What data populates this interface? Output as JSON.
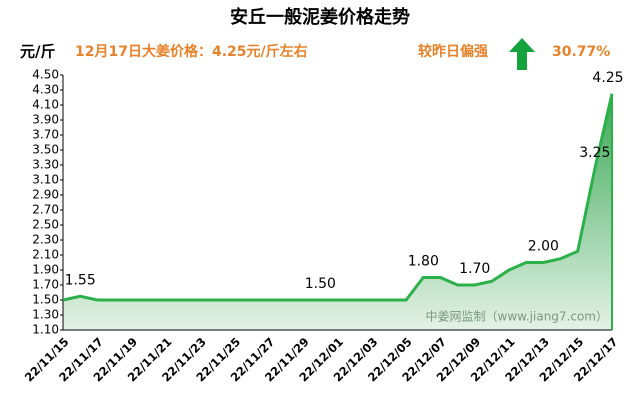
{
  "chart_data": {
    "type": "area",
    "title": "安丘一般泥姜价格走势",
    "y_label": "元/斤",
    "subtitle": "12月17日大姜价格：4.25元/斤左右",
    "compare_text": "较昨日偏强",
    "change": "30.77%",
    "watermark": "中姜网监制（www.jiang7.com）",
    "color": "#2cb04a",
    "categories": [
      "22/11/15",
      null,
      "22/11/17",
      null,
      "22/11/19",
      null,
      "22/11/21",
      null,
      "22/11/23",
      null,
      "22/11/25",
      null,
      "22/11/27",
      null,
      "22/11/29",
      null,
      "22/12/01",
      null,
      "22/12/03",
      null,
      "22/12/05",
      null,
      "22/12/07",
      null,
      "22/12/09",
      null,
      "22/12/11",
      null,
      "22/12/13",
      null,
      "22/12/15",
      null,
      "22/12/17"
    ],
    "values": [
      1.5,
      1.55,
      1.5,
      1.5,
      1.5,
      1.5,
      1.5,
      1.5,
      1.5,
      1.5,
      1.5,
      1.5,
      1.5,
      1.5,
      1.5,
      1.5,
      1.5,
      1.5,
      1.5,
      1.5,
      1.5,
      1.8,
      1.8,
      1.7,
      1.7,
      1.75,
      1.9,
      2.0,
      2.0,
      2.05,
      2.15,
      3.25,
      4.25
    ],
    "value_labels": [
      null,
      "1.55",
      null,
      null,
      null,
      null,
      null,
      null,
      null,
      null,
      null,
      null,
      null,
      null,
      null,
      "1.50",
      null,
      null,
      null,
      null,
      null,
      "1.80",
      null,
      null,
      "1.70",
      null,
      null,
      null,
      "2.00",
      null,
      null,
      "3.25",
      "4.25"
    ],
    "ylim": [
      1.1,
      4.5
    ],
    "yticks": [
      {
        "value": 1.1,
        "label": "1.10"
      },
      {
        "value": 1.3,
        "label": "1.30"
      },
      {
        "value": 1.5,
        "label": "1.50"
      },
      {
        "value": 1.7,
        "label": "1.70"
      },
      {
        "value": 1.9,
        "label": "1.90"
      },
      {
        "value": 2.1,
        "label": "2.10"
      },
      {
        "value": 2.3,
        "label": "2.30"
      },
      {
        "value": 2.5,
        "label": "2.50"
      },
      {
        "value": 2.7,
        "label": "2.70"
      },
      {
        "value": 2.9,
        "label": "2.90"
      },
      {
        "value": 3.1,
        "label": "3.10"
      },
      {
        "value": 3.3,
        "label": "3.30"
      },
      {
        "value": 3.5,
        "label": "3.50"
      },
      {
        "value": 3.7,
        "label": "3.70"
      },
      {
        "value": 3.9,
        "label": "3.90"
      },
      {
        "value": 4.1,
        "label": "4.10"
      },
      {
        "value": 4.3,
        "label": "4.30"
      },
      {
        "value": 4.5,
        "label": "4.50"
      }
    ]
  }
}
